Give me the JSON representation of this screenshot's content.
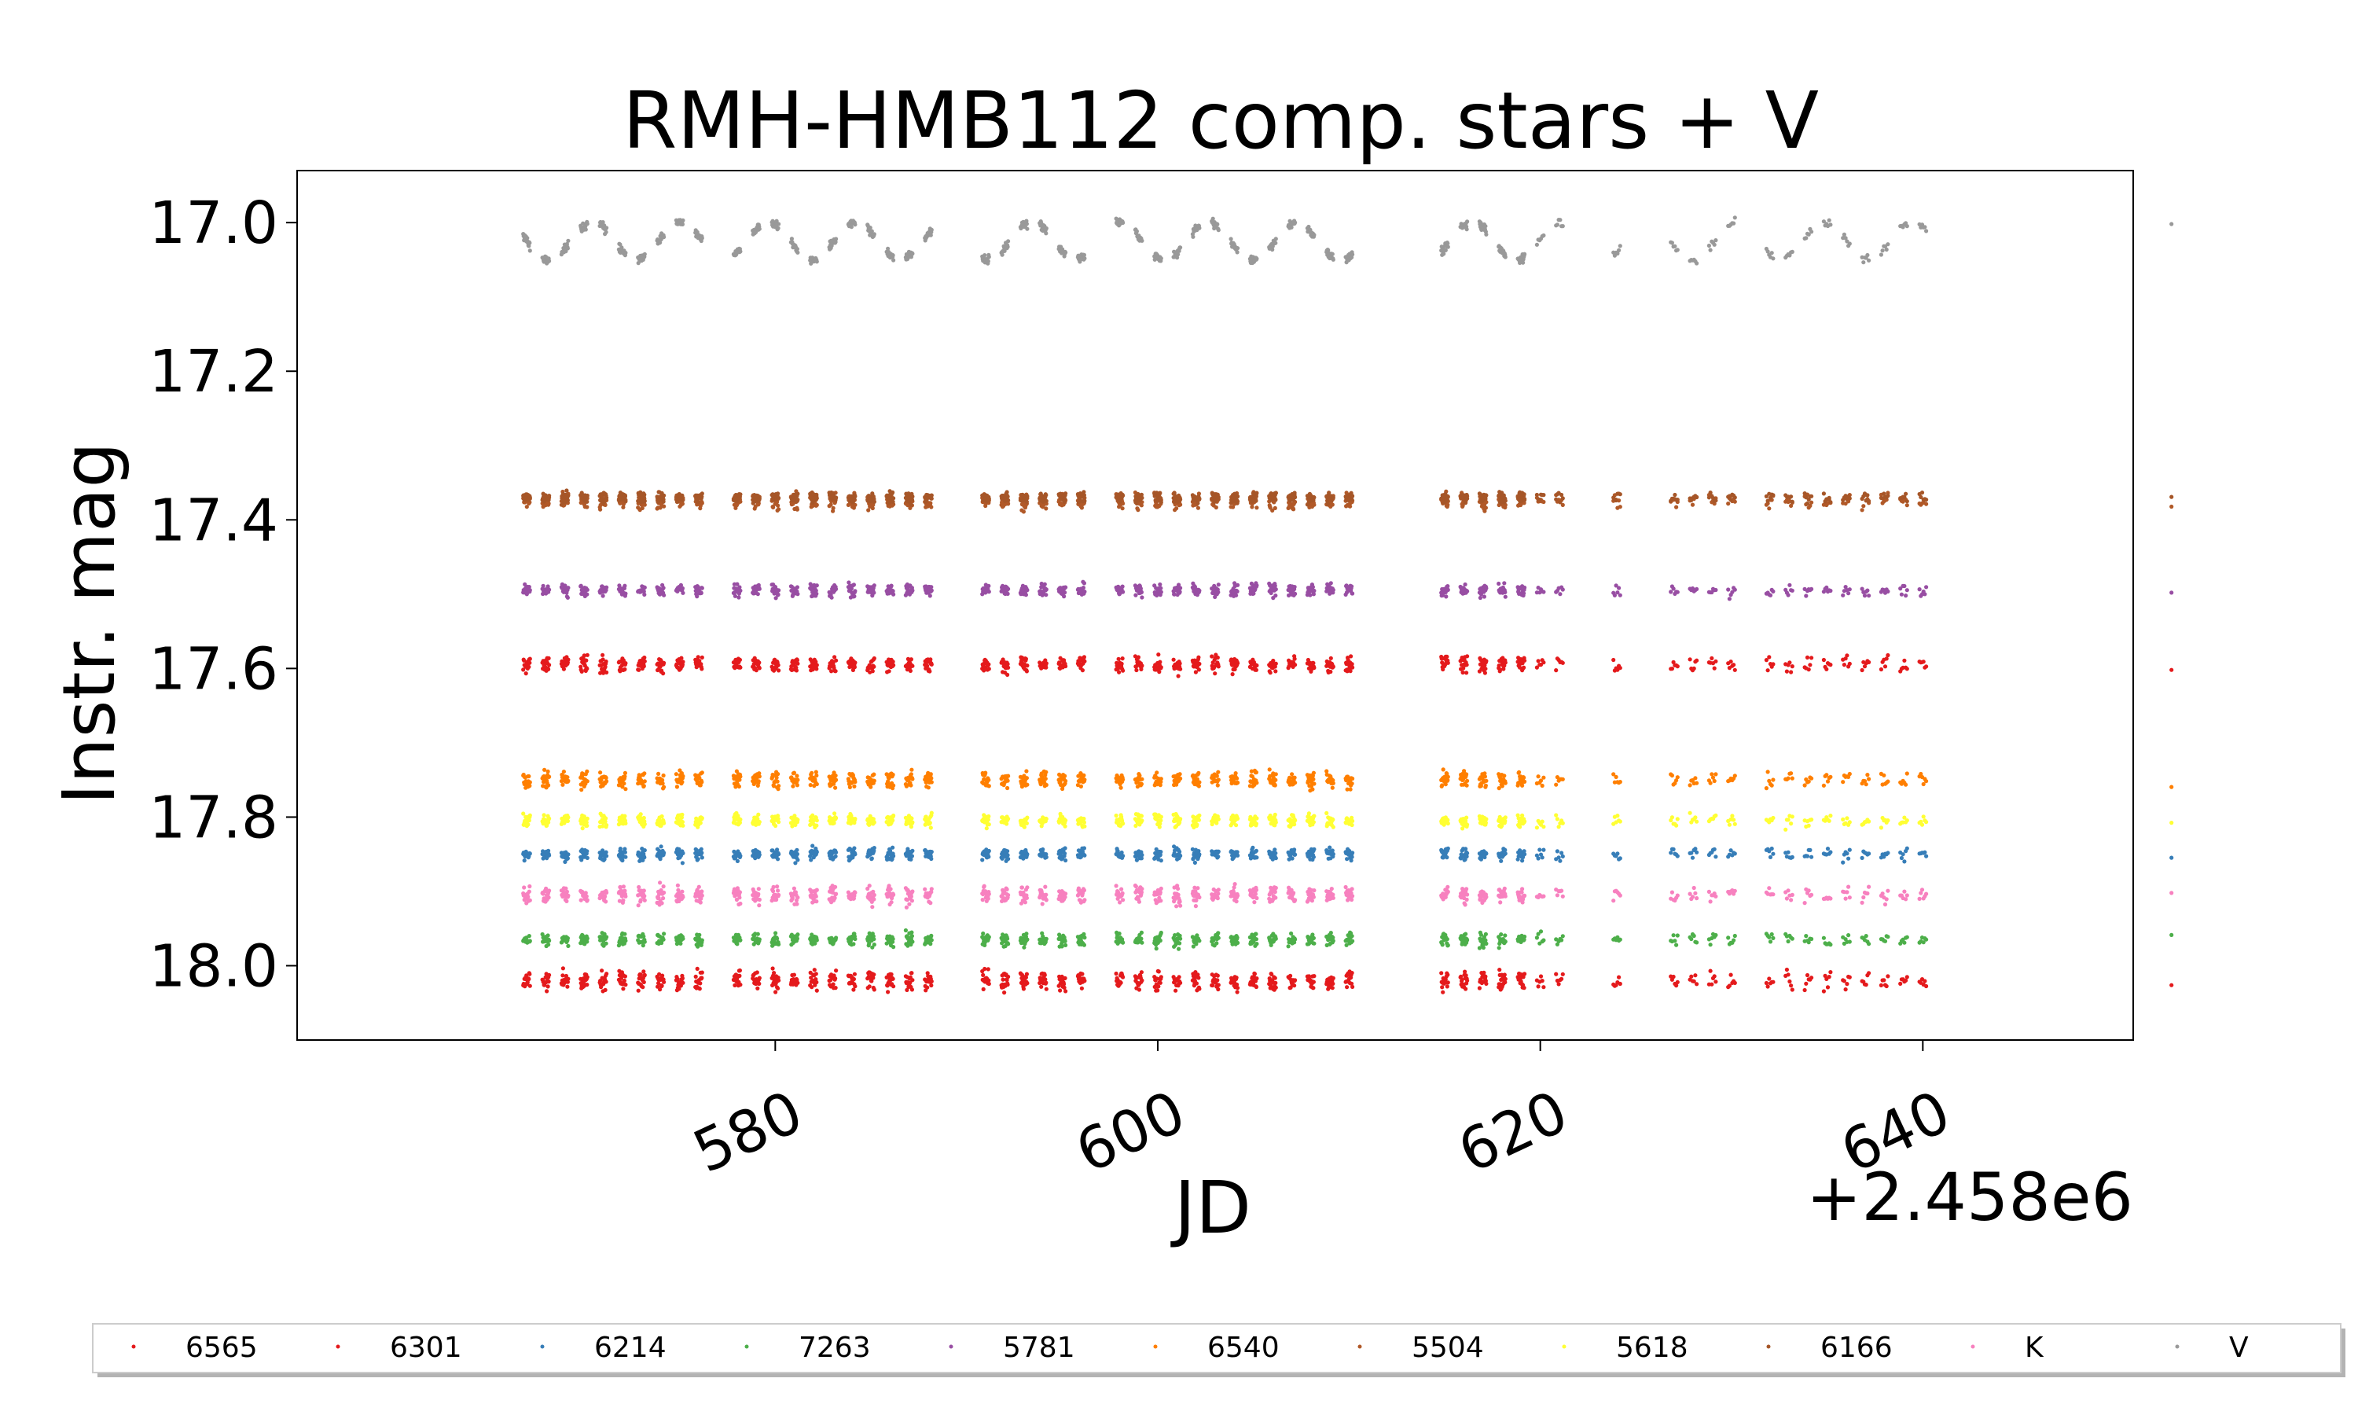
{
  "chart_data": {
    "type": "scatter",
    "title": "RMH-HMB112 comp. stars + V",
    "xlabel": "JD",
    "ylabel": "Instr. mag",
    "x_offset_label": "+2.458e6",
    "xlim": [
      555,
      651
    ],
    "ylim": [
      18.1,
      16.93
    ],
    "y_inverted": true,
    "xticks": [
      580,
      600,
      620,
      640
    ],
    "xtick_labels": [
      "580",
      "600",
      "620",
      "640"
    ],
    "yticks": [
      17.0,
      17.2,
      17.4,
      17.6,
      17.8,
      18.0
    ],
    "ytick_labels": [
      "17.0",
      "17.2",
      "17.4",
      "17.6",
      "17.8",
      "18.0"
    ],
    "grid": false,
    "legend_position": "bottom",
    "observing_nights_jd_offset": [
      567,
      568,
      569,
      570,
      571,
      572,
      573,
      574,
      575,
      576,
      578,
      579,
      580,
      581,
      582,
      583,
      584,
      585,
      586,
      587,
      588,
      591,
      592,
      593,
      594,
      595,
      596,
      598,
      599,
      600,
      601,
      602,
      603,
      604,
      605,
      606,
      607,
      608,
      609,
      610,
      615,
      616,
      617,
      618,
      619,
      620,
      621,
      624,
      627,
      628,
      629,
      630,
      632,
      633,
      634,
      635,
      636,
      637,
      638,
      639,
      640,
      653
    ],
    "series": [
      {
        "name": "6565",
        "color": "#e41a1c",
        "mean_mag": 18.02,
        "scatter": 0.018
      },
      {
        "name": "6301",
        "color": "#e41a1c",
        "mean_mag": 17.595,
        "scatter": 0.015
      },
      {
        "name": "6214",
        "color": "#377eb8",
        "mean_mag": 17.85,
        "scatter": 0.012
      },
      {
        "name": "7263",
        "color": "#4daf4a",
        "mean_mag": 17.965,
        "scatter": 0.012
      },
      {
        "name": "5781",
        "color": "#984ea3",
        "mean_mag": 17.495,
        "scatter": 0.012
      },
      {
        "name": "6540",
        "color": "#ff7f00",
        "mean_mag": 17.75,
        "scatter": 0.015
      },
      {
        "name": "5504",
        "color": "#b15928",
        "mean_mag": 17.375,
        "scatter": 0.015
      },
      {
        "name": "5618",
        "color": "#ffff33",
        "mean_mag": 17.805,
        "scatter": 0.012
      },
      {
        "name": "6166",
        "color": "#a65628",
        "mean_mag": 17.37,
        "scatter": 0.01
      },
      {
        "name": "K",
        "color": "#f781bf",
        "mean_mag": 17.905,
        "scatter": 0.016
      },
      {
        "name": "V",
        "color": "#999999",
        "mean_mag": 17.025,
        "amplitude": 0.025,
        "period_days": 4.6,
        "scatter": 0.008
      }
    ]
  }
}
